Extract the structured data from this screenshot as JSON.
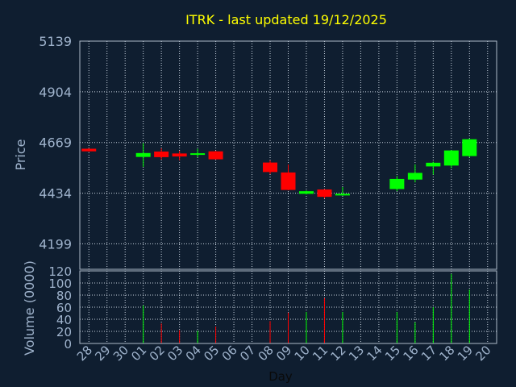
{
  "chart_data": [
    {
      "type": "candlestick",
      "title": "ITRK - last updated 19/12/2025",
      "ylabel": "Price",
      "ylim": [
        4081,
        5139
      ],
      "yticks": [
        "5139",
        "4904",
        "4669",
        "4434",
        "4199"
      ],
      "ytick_values": [
        5139,
        4904,
        4669,
        4434,
        4199
      ],
      "grid": true,
      "x": [
        "28",
        "29",
        "30",
        "01",
        "02",
        "03",
        "04",
        "05",
        "06",
        "07",
        "08",
        "09",
        "10",
        "11",
        "12",
        "13",
        "14",
        "15",
        "16",
        "17",
        "18",
        "19",
        "20"
      ],
      "candles": [
        {
          "day": "28",
          "open": 4640,
          "close": 4628,
          "high": 4642,
          "low": 4626,
          "color": "#ff0000"
        },
        {
          "day": "01",
          "open": 4602,
          "close": 4620,
          "high": 4666,
          "low": 4556,
          "color": "#00ff00"
        },
        {
          "day": "02",
          "open": 4627,
          "close": 4601,
          "high": 4642,
          "low": 4590,
          "color": "#ff0000"
        },
        {
          "day": "03",
          "open": 4618,
          "close": 4604,
          "high": 4630,
          "low": 4586,
          "color": "#ff0000"
        },
        {
          "day": "04",
          "open": 4612,
          "close": 4619,
          "high": 4640,
          "low": 4600,
          "color": "#00ff00"
        },
        {
          "day": "05",
          "open": 4628,
          "close": 4591,
          "high": 4630,
          "low": 4590,
          "color": "#ff0000"
        },
        {
          "day": "08",
          "open": 4576,
          "close": 4532,
          "high": 4586,
          "low": 4522,
          "color": "#ff0000"
        },
        {
          "day": "09",
          "open": 4530,
          "close": 4449,
          "high": 4567,
          "low": 4448,
          "color": "#ff0000"
        },
        {
          "day": "10",
          "open": 4431,
          "close": 4443,
          "high": 4447,
          "low": 4428,
          "color": "#00ff00"
        },
        {
          "day": "11",
          "open": 4451,
          "close": 4417,
          "high": 4453,
          "low": 4410,
          "color": "#ff0000"
        },
        {
          "day": "12",
          "open": 4425,
          "close": 4431,
          "high": 4462,
          "low": 4422,
          "color": "#00ff00"
        },
        {
          "day": "15",
          "open": 4453,
          "close": 4500,
          "high": 4514,
          "low": 4443,
          "color": "#00ff00"
        },
        {
          "day": "16",
          "open": 4497,
          "close": 4528,
          "high": 4567,
          "low": 4484,
          "color": "#00ff00"
        },
        {
          "day": "17",
          "open": 4558,
          "close": 4575,
          "high": 4580,
          "low": 4520,
          "color": "#00ff00"
        },
        {
          "day": "18",
          "open": 4562,
          "close": 4632,
          "high": 4634,
          "low": 4550,
          "color": "#00ff00"
        },
        {
          "day": "19",
          "open": 4606,
          "close": 4684,
          "high": 4687,
          "low": 4600,
          "color": "#00ff00"
        }
      ]
    },
    {
      "type": "bar",
      "ylabel": "Volume (0000)",
      "xlabel": "Day",
      "ylim": [
        0,
        120
      ],
      "yticks": [
        "120",
        "100",
        "80",
        "60",
        "40",
        "20",
        "0"
      ],
      "ytick_values": [
        120,
        100,
        80,
        60,
        40,
        20,
        0
      ],
      "grid": true,
      "x": [
        "28",
        "29",
        "30",
        "01",
        "02",
        "03",
        "04",
        "05",
        "06",
        "07",
        "08",
        "09",
        "10",
        "11",
        "12",
        "13",
        "14",
        "15",
        "16",
        "17",
        "18",
        "19",
        "20"
      ],
      "bars": [
        {
          "day": "01",
          "value": 63,
          "color": "#00ff00"
        },
        {
          "day": "02",
          "value": 33,
          "color": "#ff0000"
        },
        {
          "day": "03",
          "value": 22,
          "color": "#ff0000"
        },
        {
          "day": "04",
          "value": 21,
          "color": "#00ff00"
        },
        {
          "day": "05",
          "value": 28,
          "color": "#ff0000"
        },
        {
          "day": "08",
          "value": 37,
          "color": "#ff0000"
        },
        {
          "day": "09",
          "value": 51,
          "color": "#ff0000"
        },
        {
          "day": "10",
          "value": 52,
          "color": "#00ff00"
        },
        {
          "day": "11",
          "value": 75,
          "color": "#ff0000"
        },
        {
          "day": "12",
          "value": 52,
          "color": "#00ff00"
        },
        {
          "day": "15",
          "value": 52,
          "color": "#00ff00"
        },
        {
          "day": "16",
          "value": 35,
          "color": "#00ff00"
        },
        {
          "day": "17",
          "value": 60,
          "color": "#00ff00"
        },
        {
          "day": "18",
          "value": 115,
          "color": "#00ff00"
        },
        {
          "day": "19",
          "value": 89,
          "color": "#00ff00"
        }
      ]
    }
  ]
}
